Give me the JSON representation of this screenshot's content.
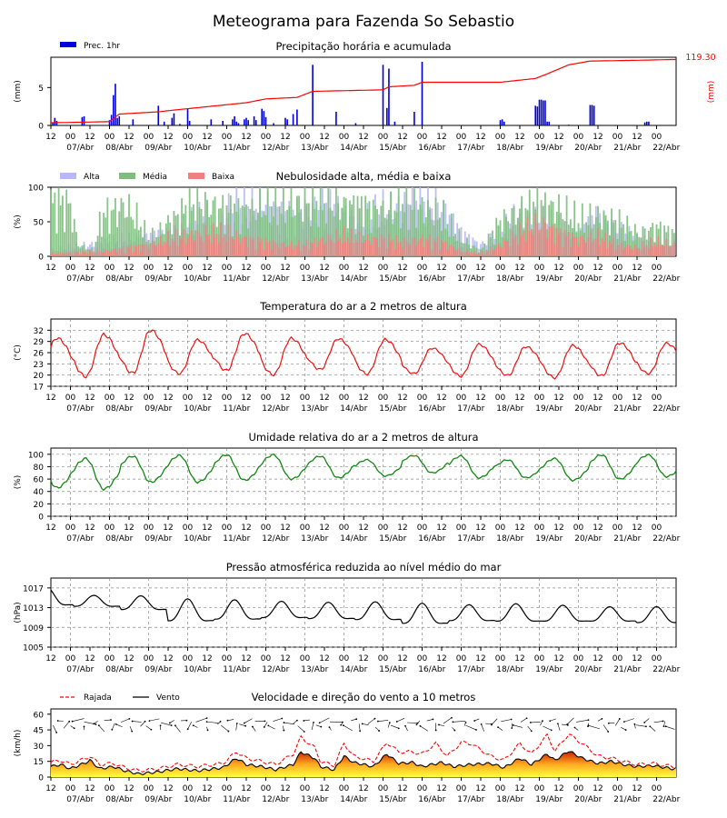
{
  "page": {
    "title": "Meteograma para Fazenda So Sebastio"
  },
  "x_axis": {
    "hour_ticks": [
      "12",
      "00",
      "12",
      "00",
      "12",
      "00",
      "12",
      "00",
      "12",
      "00",
      "12",
      "00",
      "12",
      "00",
      "12",
      "00",
      "12",
      "00",
      "12",
      "00",
      "12",
      "00",
      "12",
      "00",
      "12",
      "00",
      "12",
      "00",
      "12",
      "00",
      "12",
      "00"
    ],
    "date_labels": [
      "07/Abr",
      "08/Abr",
      "09/Abr",
      "10/Abr",
      "11/Abr",
      "12/Abr",
      "13/Abr",
      "14/Abr",
      "15/Abr",
      "16/Abr",
      "17/Abr",
      "18/Abr",
      "19/Abr",
      "20/Abr",
      "21/Abr",
      "22/Abr"
    ]
  },
  "colors": {
    "rain": "#0000dd",
    "accumulated": "#ff0000",
    "alta": "#b8b8f6",
    "media": "#7dbe7d",
    "baixa": "#f08080",
    "temperature": "#ee1111",
    "humidity": "#118811",
    "pressure": "#000000",
    "gust": "#ff0000",
    "wind": "#000000"
  },
  "chart_data": [
    {
      "type": "bar",
      "title": "Precipitação horária e acumulada",
      "ylabel": "(mm)",
      "ylabel_right": "(mm)",
      "legend": [
        "Prec. 1hr"
      ],
      "accumulated_total": "119.30",
      "yticks": [
        "0",
        "5"
      ],
      "ylim": [
        0,
        9
      ],
      "rain_mm": [
        [
          1,
          0.3
        ],
        [
          2,
          1.0
        ],
        [
          3,
          0.6
        ],
        [
          16,
          1.1
        ],
        [
          17,
          1.2
        ],
        [
          30,
          0.7
        ],
        [
          31,
          1.4
        ],
        [
          32,
          4.0
        ],
        [
          33,
          5.5
        ],
        [
          34,
          1.0
        ],
        [
          35,
          1.2
        ],
        [
          42,
          0.8
        ],
        [
          55,
          2.6
        ],
        [
          58,
          0.5
        ],
        [
          62,
          1.0
        ],
        [
          63,
          1.6
        ],
        [
          66,
          0.2
        ],
        [
          70,
          2.2
        ],
        [
          71,
          0.6
        ],
        [
          82,
          0.8
        ],
        [
          88,
          0.6
        ],
        [
          93,
          0.8
        ],
        [
          94,
          1.2
        ],
        [
          95,
          0.5
        ],
        [
          96,
          0.3
        ],
        [
          99,
          0.8
        ],
        [
          100,
          1.0
        ],
        [
          101,
          0.7
        ],
        [
          104,
          1.2
        ],
        [
          105,
          0.7
        ],
        [
          108,
          2.2
        ],
        [
          109,
          1.9
        ],
        [
          110,
          1.1
        ],
        [
          114,
          0.3
        ],
        [
          120,
          1.0
        ],
        [
          121,
          0.8
        ],
        [
          124,
          1.5
        ],
        [
          126,
          2.1
        ],
        [
          134,
          8.0
        ],
        [
          146,
          1.8
        ],
        [
          156,
          0.3
        ],
        [
          170,
          8.0
        ],
        [
          172,
          2.3
        ],
        [
          173,
          7.5
        ],
        [
          176,
          0.5
        ],
        [
          186,
          1.8
        ],
        [
          190,
          8.4
        ],
        [
          230,
          0.7
        ],
        [
          231,
          0.8
        ],
        [
          232,
          0.5
        ],
        [
          248,
          2.6
        ],
        [
          249,
          2.5
        ],
        [
          250,
          3.4
        ],
        [
          251,
          3.4
        ],
        [
          252,
          3.3
        ],
        [
          253,
          3.3
        ],
        [
          254,
          0.5
        ],
        [
          255,
          0.5
        ],
        [
          265,
          0.1
        ],
        [
          276,
          2.7
        ],
        [
          277,
          2.7
        ],
        [
          278,
          2.6
        ],
        [
          304,
          0.4
        ],
        [
          305,
          0.5
        ],
        [
          306,
          0.5
        ]
      ],
      "accum_profile": [
        [
          0,
          0.35
        ],
        [
          30,
          0.5
        ],
        [
          35,
          1.5
        ],
        [
          55,
          1.8
        ],
        [
          62,
          2.0
        ],
        [
          100,
          3.0
        ],
        [
          110,
          3.5
        ],
        [
          126,
          3.7
        ],
        [
          134,
          4.5
        ],
        [
          170,
          4.7
        ],
        [
          173,
          5.1
        ],
        [
          186,
          5.3
        ],
        [
          190,
          5.7
        ],
        [
          230,
          5.7
        ],
        [
          248,
          6.2
        ],
        [
          254,
          6.8
        ],
        [
          265,
          8.0
        ],
        [
          276,
          8.5
        ],
        [
          300,
          8.6
        ],
        [
          318,
          8.7
        ]
      ]
    },
    {
      "type": "bar",
      "title": "Nebulosidade alta, média e baixa",
      "ylabel": "(%)",
      "legend": [
        "Alta",
        "Média",
        "Baixa"
      ],
      "yticks": [
        "0",
        "50",
        "100"
      ],
      "ylim": [
        0,
        100
      ],
      "alta_pct": [
        [
          0,
          10
        ],
        [
          20,
          20
        ],
        [
          60,
          40
        ],
        [
          70,
          60
        ],
        [
          80,
          70
        ],
        [
          85,
          30
        ],
        [
          90,
          85
        ],
        [
          110,
          95
        ],
        [
          120,
          70
        ],
        [
          140,
          90
        ],
        [
          160,
          60
        ],
        [
          170,
          80
        ],
        [
          180,
          90
        ],
        [
          190,
          95
        ],
        [
          200,
          90
        ],
        [
          210,
          40
        ],
        [
          220,
          20
        ],
        [
          230,
          40
        ],
        [
          240,
          75
        ],
        [
          260,
          50
        ],
        [
          270,
          40
        ],
        [
          280,
          70
        ],
        [
          300,
          30
        ],
        [
          318,
          20
        ]
      ],
      "media_pct": [
        [
          0,
          95
        ],
        [
          10,
          90
        ],
        [
          14,
          20
        ],
        [
          22,
          10
        ],
        [
          26,
          70
        ],
        [
          32,
          80
        ],
        [
          38,
          90
        ],
        [
          45,
          60
        ],
        [
          50,
          30
        ],
        [
          55,
          40
        ],
        [
          60,
          60
        ],
        [
          65,
          70
        ],
        [
          70,
          85
        ],
        [
          80,
          90
        ],
        [
          90,
          80
        ],
        [
          100,
          80
        ],
        [
          110,
          90
        ],
        [
          120,
          90
        ],
        [
          130,
          95
        ],
        [
          140,
          95
        ],
        [
          150,
          90
        ],
        [
          160,
          85
        ],
        [
          170,
          80
        ],
        [
          180,
          90
        ],
        [
          190,
          85
        ],
        [
          200,
          70
        ],
        [
          210,
          30
        ],
        [
          220,
          10
        ],
        [
          230,
          60
        ],
        [
          240,
          80
        ],
        [
          250,
          90
        ],
        [
          260,
          85
        ],
        [
          270,
          60
        ],
        [
          280,
          70
        ],
        [
          290,
          60
        ],
        [
          300,
          40
        ],
        [
          310,
          50
        ],
        [
          318,
          40
        ]
      ],
      "baixa_pct": [
        [
          0,
          5
        ],
        [
          30,
          10
        ],
        [
          40,
          15
        ],
        [
          50,
          20
        ],
        [
          60,
          30
        ],
        [
          70,
          35
        ],
        [
          80,
          40
        ],
        [
          90,
          40
        ],
        [
          100,
          30
        ],
        [
          110,
          25
        ],
        [
          120,
          20
        ],
        [
          130,
          20
        ],
        [
          140,
          30
        ],
        [
          150,
          35
        ],
        [
          160,
          30
        ],
        [
          170,
          30
        ],
        [
          180,
          25
        ],
        [
          190,
          30
        ],
        [
          200,
          25
        ],
        [
          210,
          10
        ],
        [
          220,
          5
        ],
        [
          230,
          20
        ],
        [
          240,
          40
        ],
        [
          250,
          60
        ],
        [
          260,
          40
        ],
        [
          270,
          30
        ],
        [
          280,
          35
        ],
        [
          290,
          20
        ],
        [
          300,
          15
        ],
        [
          310,
          25
        ],
        [
          318,
          20
        ]
      ]
    },
    {
      "type": "line",
      "title": "Temperatura do ar a 2 metros de altura",
      "ylabel": "(°C)",
      "yticks": [
        "17",
        "20",
        "23",
        "26",
        "29",
        "32"
      ],
      "ylim": [
        17,
        35
      ],
      "days_min": [
        19.9,
        19.6,
        20.5,
        20.4,
        21.2,
        20.1,
        21.5,
        20.3,
        20.4,
        19.7,
        19.9,
        19.3,
        19.8,
        20.4,
        19.7,
        19.3,
        19.5
      ],
      "days_max": [
        29.9,
        30.8,
        32.0,
        29.4,
        31.1,
        29.8,
        29.7,
        29.5,
        27.2,
        28.2,
        27.6,
        27.9,
        28.6,
        28.5,
        26.6,
        29.2,
        29.4
      ]
    },
    {
      "type": "line",
      "title": "Umidade relativa do ar a 2 metros de altura",
      "ylabel": "(%)",
      "yticks": [
        "0",
        "20",
        "40",
        "60",
        "80",
        "100"
      ],
      "ylim": [
        0,
        110
      ],
      "days_min": [
        46,
        44,
        55,
        55,
        58,
        60,
        62,
        65,
        70,
        62,
        62,
        58,
        60,
        64,
        66,
        62,
        58
      ],
      "days_max": [
        92,
        93,
        97,
        98,
        99,
        99,
        97,
        91,
        98,
        97,
        91,
        93,
        99,
        99,
        98,
        98,
        100
      ]
    },
    {
      "type": "line",
      "title": "Pressão atmosférica reduzida ao nível médio do mar",
      "ylabel": "(hPa)",
      "yticks": [
        "1005",
        "1009",
        "1013",
        "1017"
      ],
      "ylim": [
        1005,
        1019
      ],
      "days_min": [
        1012.5,
        1012.6,
        1011.8,
        1009.0,
        1009.5,
        1010.0,
        1009.8,
        1009.5,
        1008.6,
        1009.4,
        1009.2,
        1009.3,
        1009.4,
        1009.0,
        1009.3,
        1008.5,
        1008.5
      ],
      "days_max": [
        1017.1,
        1015.5,
        1015.4,
        1014.8,
        1014.6,
        1014.3,
        1014.1,
        1014.2,
        1013.9,
        1013.6,
        1013.8,
        1013.5,
        1013.2,
        1013.2,
        1013.5,
        1012.9,
        1012.4
      ]
    },
    {
      "type": "area",
      "title": "Velocidade e direção do vento a 10 metros",
      "ylabel": "(km/h)",
      "legend": [
        "Rajada",
        "Vento"
      ],
      "yticks": [
        "0",
        "15",
        "30",
        "45",
        "60"
      ],
      "ylim": [
        0,
        65
      ],
      "wind_kmh": [
        [
          0,
          10
        ],
        [
          5,
          12
        ],
        [
          10,
          8
        ],
        [
          18,
          14
        ],
        [
          20,
          16
        ],
        [
          25,
          8
        ],
        [
          32,
          10
        ],
        [
          38,
          6
        ],
        [
          45,
          3
        ],
        [
          55,
          5
        ],
        [
          65,
          8
        ],
        [
          75,
          6
        ],
        [
          88,
          9
        ],
        [
          95,
          18
        ],
        [
          100,
          12
        ],
        [
          108,
          10
        ],
        [
          115,
          7
        ],
        [
          124,
          12
        ],
        [
          128,
          24
        ],
        [
          135,
          18
        ],
        [
          138,
          10
        ],
        [
          145,
          7
        ],
        [
          150,
          20
        ],
        [
          155,
          14
        ],
        [
          165,
          10
        ],
        [
          172,
          22
        ],
        [
          178,
          13
        ],
        [
          185,
          14
        ],
        [
          190,
          10
        ],
        [
          200,
          14
        ],
        [
          206,
          10
        ],
        [
          215,
          12
        ],
        [
          225,
          13
        ],
        [
          232,
          9
        ],
        [
          240,
          18
        ],
        [
          246,
          12
        ],
        [
          254,
          22
        ],
        [
          258,
          16
        ],
        [
          265,
          25
        ],
        [
          272,
          18
        ],
        [
          280,
          13
        ],
        [
          287,
          15
        ],
        [
          293,
          12
        ],
        [
          300,
          10
        ],
        [
          308,
          11
        ],
        [
          318,
          8
        ]
      ],
      "gust_kmh": [
        [
          0,
          14
        ],
        [
          5,
          16
        ],
        [
          10,
          12
        ],
        [
          18,
          18
        ],
        [
          20,
          20
        ],
        [
          25,
          12
        ],
        [
          32,
          13
        ],
        [
          38,
          9
        ],
        [
          45,
          6
        ],
        [
          55,
          8
        ],
        [
          65,
          12
        ],
        [
          75,
          10
        ],
        [
          88,
          13
        ],
        [
          95,
          24
        ],
        [
          100,
          18
        ],
        [
          108,
          15
        ],
        [
          115,
          12
        ],
        [
          124,
          22
        ],
        [
          128,
          38
        ],
        [
          135,
          28
        ],
        [
          138,
          15
        ],
        [
          145,
          11
        ],
        [
          150,
          32
        ],
        [
          155,
          20
        ],
        [
          165,
          15
        ],
        [
          172,
          33
        ],
        [
          178,
          24
        ],
        [
          185,
          24
        ],
        [
          190,
          22
        ],
        [
          197,
          32
        ],
        [
          203,
          20
        ],
        [
          210,
          33
        ],
        [
          215,
          32
        ],
        [
          220,
          26
        ],
        [
          225,
          20
        ],
        [
          232,
          16
        ],
        [
          240,
          32
        ],
        [
          246,
          22
        ],
        [
          254,
          40
        ],
        [
          258,
          25
        ],
        [
          265,
          41
        ],
        [
          272,
          32
        ],
        [
          280,
          20
        ],
        [
          287,
          18
        ],
        [
          293,
          15
        ],
        [
          300,
          12
        ],
        [
          308,
          13
        ],
        [
          318,
          10
        ]
      ]
    }
  ]
}
